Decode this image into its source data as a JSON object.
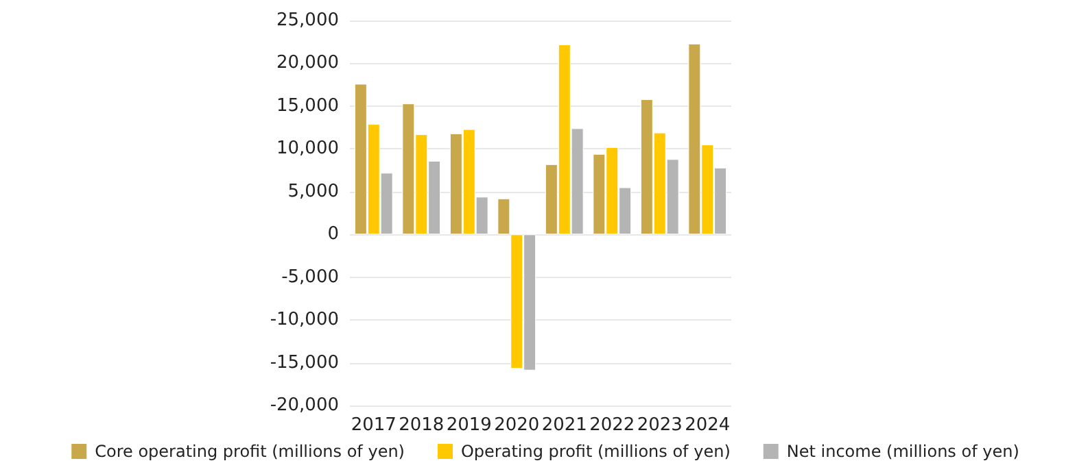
{
  "chart_data": {
    "type": "bar",
    "categories": [
      "2017",
      "2018",
      "2019",
      "2020",
      "2021",
      "2022",
      "2023",
      "2024"
    ],
    "series": [
      {
        "name": "Core operating profit (millions of yen)",
        "color": "#c8a84b",
        "values": [
          17600,
          15300,
          11800,
          4200,
          8200,
          9400,
          15800,
          22300
        ]
      },
      {
        "name": "Operating profit (millions of yen)",
        "color": "#ffc800",
        "values": [
          12900,
          11700,
          12300,
          -15700,
          22200,
          10200,
          11900,
          10500
        ]
      },
      {
        "name": "Net income (millions of yen)",
        "color": "#b4b4b4",
        "values": [
          7200,
          8600,
          4400,
          -15900,
          12400,
          5500,
          8800,
          7800
        ]
      }
    ],
    "ylim": [
      -20000,
      25000
    ],
    "yticks": [
      {
        "value": -20000,
        "label": "-20,000"
      },
      {
        "value": -15000,
        "label": "-15,000"
      },
      {
        "value": -10000,
        "label": "-10,000"
      },
      {
        "value": -5000,
        "label": "-5,000"
      },
      {
        "value": 0,
        "label": "0"
      },
      {
        "value": 5000,
        "label": "5,000"
      },
      {
        "value": 10000,
        "label": "10,000"
      },
      {
        "value": 15000,
        "label": "15,000"
      },
      {
        "value": 20000,
        "label": "20,000"
      },
      {
        "value": 25000,
        "label": "25,000"
      }
    ],
    "grid": "y",
    "legend": "bottom"
  }
}
